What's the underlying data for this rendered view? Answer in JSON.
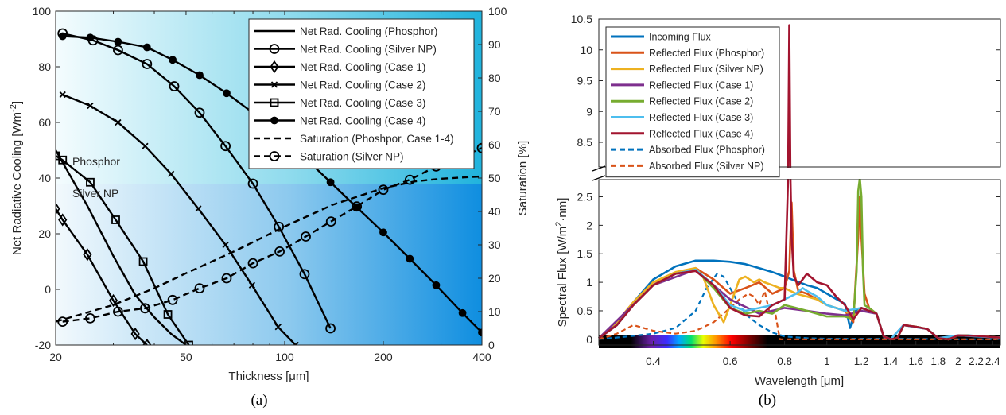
{
  "captions": {
    "a": "(a)",
    "b": "(b)"
  },
  "colors": {
    "incoming": "#0072BD",
    "phosphor": "#D95319",
    "silver": "#EDB120",
    "case1": "#7E2F8E",
    "case2": "#77AC30",
    "case3": "#4DBEEE",
    "case4": "#A2142F",
    "grad_light": "#f2fbfd",
    "grad_mid": "#79d2e8",
    "grad_dark": "#0a99d6"
  },
  "chart_data": [
    {
      "type": "line",
      "panel": "a",
      "xlabel": "Thickness [μm]",
      "xscale": "log",
      "xlim": [
        20,
        400
      ],
      "xticks": [
        20,
        50,
        100,
        200,
        400
      ],
      "ylabel_left_main": "Net Radiative Cooling [Wm",
      "ylabel_left_sup": "-2",
      "ylabel_left_end": "]",
      "ylim_left": [
        -20,
        100
      ],
      "yticks_left": [
        -20,
        0,
        20,
        40,
        60,
        80,
        100
      ],
      "ylabel_right": "Saturation [%]",
      "ylim_right": [
        0,
        100
      ],
      "yticks_right": [
        0,
        10,
        20,
        30,
        40,
        50,
        60,
        70,
        80,
        90,
        100
      ],
      "region_labels": [
        "Phosphor",
        "Silver NP"
      ],
      "legend_position": "top-right",
      "series": [
        {
          "name": "Net Rad. Cooling (Phosphor)",
          "axis": "left",
          "style": "solid",
          "marker": "none",
          "x": [
            20,
            25,
            30,
            35,
            40,
            45,
            50
          ],
          "y": [
            50,
            30,
            12,
            -2,
            -10,
            -16,
            -20
          ]
        },
        {
          "name": "Net Rad. Cooling (Silver NP)",
          "axis": "left",
          "style": "solid",
          "marker": "circle",
          "x": [
            21,
            26,
            31,
            38,
            46,
            55,
            66,
            80,
            96,
            115,
            138
          ],
          "y": [
            92,
            89.5,
            86,
            81,
            73,
            63.5,
            51.5,
            38,
            22.5,
            5.5,
            -14
          ]
        },
        {
          "name": "Net Rad. Cooling (Case 1)",
          "axis": "left",
          "style": "solid",
          "marker": "diamond",
          "x": [
            20,
            21,
            25,
            30,
            35,
            38
          ],
          "y": [
            29,
            25,
            12.5,
            -4,
            -16,
            -20
          ]
        },
        {
          "name": "Net Rad. Cooling (Case 2)",
          "axis": "left",
          "style": "solid",
          "marker": "x",
          "x": [
            21,
            25.5,
            31,
            37.5,
            45,
            54.5,
            66,
            79.5,
            95.5,
            108
          ],
          "y": [
            70,
            66,
            60,
            51.5,
            41.5,
            29,
            16,
            1.5,
            -13.5,
            -20
          ]
        },
        {
          "name": "Net Rad. Cooling (Case 3)",
          "axis": "left",
          "style": "solid",
          "marker": "square",
          "x": [
            20,
            21,
            25.5,
            30.5,
            37,
            44,
            51
          ],
          "y": [
            48,
            46.5,
            38.5,
            25,
            10,
            -9,
            -20
          ]
        },
        {
          "name": "Net Rad. Cooling (Case 4)",
          "axis": "left",
          "style": "solid",
          "marker": "filled-circle",
          "x": [
            21,
            25.5,
            31,
            38,
            45.5,
            55,
            66.5,
            80,
            96,
            116,
            138,
            166,
            200,
            241,
            290,
            349,
            400
          ],
          "y": [
            91,
            90.5,
            89,
            87,
            82.5,
            77,
            70.5,
            63.5,
            56,
            47,
            38.5,
            29.5,
            20.5,
            11,
            1.5,
            -8.5,
            -15.5
          ]
        },
        {
          "name": "Saturation (Phoshpor, Case 1-4)",
          "axis": "right",
          "style": "dashed",
          "marker": "none",
          "x": [
            20,
            30,
            40,
            50,
            70,
            100,
            140,
            200,
            250,
            300,
            400
          ],
          "y": [
            7,
            12,
            17,
            21.5,
            28,
            35.5,
            42,
            47,
            49,
            49.8,
            50.5
          ]
        },
        {
          "name": "Saturation (Silver NP)",
          "axis": "right",
          "style": "dashed",
          "marker": "circle",
          "x": [
            21,
            25.5,
            31,
            37.5,
            45.5,
            55,
            66.5,
            80,
            96.5,
            116,
            138.5,
            166,
            200,
            241,
            290,
            350,
            400
          ],
          "y": [
            7,
            8,
            10,
            11,
            13.5,
            17,
            20,
            24.5,
            28,
            32.5,
            37,
            41.5,
            46.5,
            49.5,
            53.5,
            56.5,
            59
          ]
        }
      ]
    },
    {
      "type": "line",
      "panel": "b",
      "xlabel": "Wavelength [μm]",
      "xscale": "log",
      "xlim": [
        0.3,
        2.5
      ],
      "xticks": [
        "0.4",
        "0.6",
        "0.8",
        "1",
        "1.2",
        "1.4",
        "1.6",
        "1.8",
        "2",
        "2.2",
        "2.4"
      ],
      "xtick_values": [
        0.4,
        0.6,
        0.8,
        1.0,
        1.2,
        1.4,
        1.6,
        1.8,
        2.0,
        2.2,
        2.4
      ],
      "ylabel_main": "Spectral Flux [W/m",
      "ylabel_sup": "2",
      "ylabel_end": "·nm]",
      "ylim_lower": [
        -0.1,
        2.8
      ],
      "yticks_lower": [
        "0",
        "0.5",
        "1",
        "1.5",
        "2",
        "2.5"
      ],
      "ytick_lower_values": [
        0,
        0.5,
        1,
        1.5,
        2,
        2.5
      ],
      "ylim_upper": [
        8.1,
        10.5
      ],
      "yticks_upper": [
        "8.5",
        "9",
        "9.5",
        "10",
        "10.5"
      ],
      "ytick_upper_values": [
        8.5,
        9,
        9.5,
        10,
        10.5
      ],
      "axis_break": true,
      "legend_position": "top-left",
      "series": [
        {
          "name": "Incoming Flux",
          "color_key": "incoming",
          "style": "solid",
          "x": [
            0.3,
            0.33,
            0.36,
            0.4,
            0.45,
            0.5,
            0.55,
            0.6,
            0.65,
            0.7,
            0.75,
            0.8,
            0.85,
            0.9,
            0.95,
            1.0,
            1.1,
            1.13,
            1.16,
            1.2,
            1.25,
            1.3,
            1.35,
            1.4,
            1.45,
            1.5,
            1.6,
            1.7,
            1.8,
            1.9,
            2.0,
            2.1,
            2.2,
            2.3,
            2.4,
            2.5
          ],
          "y": [
            0.02,
            0.25,
            0.65,
            1.05,
            1.28,
            1.38,
            1.38,
            1.36,
            1.32,
            1.25,
            1.18,
            1.1,
            1.02,
            0.95,
            0.9,
            0.8,
            0.62,
            0.2,
            0.5,
            0.55,
            0.5,
            0.45,
            0.05,
            0.0,
            0.02,
            0.25,
            0.22,
            0.18,
            0.02,
            0.0,
            0.07,
            0.07,
            0.06,
            0.05,
            0.04,
            0.03
          ]
        },
        {
          "name": "Reflected Flux (Phosphor)",
          "color_key": "phosphor",
          "style": "solid",
          "x": [
            0.3,
            0.33,
            0.36,
            0.4,
            0.45,
            0.5,
            0.55,
            0.6,
            0.65,
            0.7,
            0.75,
            0.8,
            0.82,
            0.83,
            0.84,
            0.86,
            0.9,
            0.95,
            1.0,
            1.1,
            1.15,
            1.18,
            1.19,
            1.2,
            1.22,
            1.25,
            1.3,
            1.35,
            1.4,
            1.45,
            1.5,
            1.6,
            1.7,
            1.8,
            1.9,
            2.0,
            2.2,
            2.4,
            2.5
          ],
          "y": [
            0.02,
            0.3,
            0.65,
            1.0,
            1.15,
            1.25,
            1.05,
            0.8,
            0.9,
            1.0,
            0.8,
            0.9,
            1.2,
            2.4,
            1.2,
            0.85,
            0.8,
            0.7,
            0.6,
            0.5,
            0.3,
            1.8,
            2.5,
            1.8,
            0.8,
            0.55,
            0.45,
            0.05,
            0.0,
            0.02,
            0.25,
            0.22,
            0.18,
            0.02,
            0.0,
            0.07,
            0.06,
            0.04,
            0.03
          ]
        },
        {
          "name": "Reflected Flux (Silver NP)",
          "color_key": "silver",
          "style": "solid",
          "x": [
            0.3,
            0.33,
            0.36,
            0.4,
            0.45,
            0.5,
            0.52,
            0.55,
            0.58,
            0.6,
            0.63,
            0.65,
            0.68,
            0.7,
            0.72,
            0.75,
            0.78,
            0.8,
            0.85,
            0.9,
            0.95,
            1.0,
            1.05,
            1.1,
            1.15,
            1.2,
            1.25,
            1.3,
            1.35,
            1.4,
            1.45,
            1.5,
            1.6,
            1.7,
            1.8,
            1.9,
            2.0,
            2.2,
            2.4,
            2.5
          ],
          "y": [
            0.02,
            0.3,
            0.65,
            1.0,
            1.18,
            1.25,
            1.1,
            0.6,
            0.3,
            0.6,
            1.05,
            1.1,
            1.0,
            1.05,
            1.0,
            0.95,
            0.9,
            0.9,
            0.8,
            0.75,
            0.7,
            0.6,
            0.55,
            0.5,
            0.4,
            0.55,
            0.5,
            0.45,
            0.05,
            0.0,
            0.02,
            0.25,
            0.22,
            0.18,
            0.02,
            0.0,
            0.07,
            0.06,
            0.04,
            0.03
          ]
        },
        {
          "name": "Reflected Flux (Case 1)",
          "color_key": "case1",
          "style": "solid",
          "x": [
            0.3,
            0.4,
            0.5,
            0.6,
            0.7,
            0.8,
            0.9,
            1.0,
            1.1,
            1.2,
            1.3,
            1.35,
            1.4,
            1.5,
            1.7,
            1.8,
            2.0,
            2.5
          ],
          "y": [
            0.02,
            0.95,
            1.22,
            0.7,
            0.45,
            0.55,
            0.5,
            0.45,
            0.42,
            0.5,
            0.45,
            0.05,
            0.0,
            0.25,
            0.18,
            0.02,
            0.07,
            0.03
          ]
        },
        {
          "name": "Reflected Flux (Case 2)",
          "color_key": "case2",
          "style": "solid",
          "x": [
            0.3,
            0.33,
            0.36,
            0.4,
            0.45,
            0.5,
            0.55,
            0.6,
            0.65,
            0.7,
            0.75,
            0.8,
            0.85,
            0.9,
            0.95,
            1.0,
            1.1,
            1.15,
            1.17,
            1.18,
            1.19,
            1.2,
            1.21,
            1.22,
            1.25,
            1.3,
            1.35,
            1.4,
            1.45,
            1.5,
            1.6,
            1.7,
            1.8,
            1.9,
            2.0,
            2.2,
            2.4,
            2.5
          ],
          "y": [
            0.02,
            0.25,
            0.6,
            0.95,
            1.15,
            1.22,
            0.9,
            0.55,
            0.45,
            0.5,
            0.45,
            0.6,
            0.55,
            0.5,
            0.45,
            0.4,
            0.4,
            0.35,
            1.2,
            2.6,
            3.35,
            2.5,
            1.2,
            0.6,
            0.55,
            0.45,
            0.05,
            0.0,
            0.02,
            0.25,
            0.22,
            0.18,
            0.02,
            0.0,
            0.07,
            0.06,
            0.04,
            0.03
          ]
        },
        {
          "name": "Reflected Flux (Case 3)",
          "color_key": "case3",
          "style": "solid",
          "x": [
            0.3,
            0.33,
            0.36,
            0.4,
            0.45,
            0.5,
            0.55,
            0.6,
            0.65,
            0.7,
            0.75,
            0.8,
            0.85,
            0.88,
            0.9,
            0.95,
            1.0,
            1.1,
            1.2,
            1.3,
            1.35,
            1.4,
            1.5,
            1.7,
            1.8,
            2.0,
            2.5
          ],
          "y": [
            0.02,
            0.25,
            0.6,
            0.95,
            1.15,
            1.22,
            0.95,
            0.6,
            0.5,
            0.55,
            0.6,
            0.7,
            0.8,
            0.9,
            0.85,
            0.75,
            0.6,
            0.5,
            0.55,
            0.45,
            0.05,
            0.0,
            0.25,
            0.18,
            0.02,
            0.07,
            0.03
          ]
        },
        {
          "name": "Reflected Flux (Case 4)",
          "color_key": "case4",
          "style": "solid",
          "x": [
            0.3,
            0.33,
            0.36,
            0.4,
            0.45,
            0.5,
            0.55,
            0.6,
            0.65,
            0.7,
            0.75,
            0.8,
            0.815,
            0.82,
            0.825,
            0.83,
            0.84,
            0.86,
            0.9,
            0.95,
            1.0,
            1.05,
            1.1,
            1.15,
            1.2,
            1.25,
            1.3,
            1.35,
            1.4,
            1.45,
            1.5,
            1.6,
            1.7,
            1.8,
            1.9,
            2.0,
            2.2,
            2.4,
            2.5
          ],
          "y": [
            0.02,
            0.25,
            0.6,
            0.95,
            1.15,
            1.2,
            0.95,
            0.55,
            0.42,
            0.4,
            0.6,
            0.7,
            3.5,
            10.4,
            5.0,
            1.8,
            1.1,
            0.95,
            1.15,
            1.0,
            0.95,
            0.75,
            0.6,
            0.35,
            0.55,
            0.5,
            0.45,
            0.05,
            0.0,
            0.02,
            0.25,
            0.22,
            0.18,
            0.02,
            0.0,
            0.07,
            0.06,
            0.04,
            0.03
          ]
        },
        {
          "name": "Absorbed Flux (Phosphor)",
          "color_key": "incoming",
          "style": "dashed",
          "x": [
            0.3,
            0.35,
            0.4,
            0.45,
            0.5,
            0.53,
            0.56,
            0.58,
            0.6,
            0.63,
            0.66,
            0.7,
            0.75,
            0.8,
            0.9,
            1.0,
            1.2,
            1.5,
            2.0,
            2.5
          ],
          "y": [
            0.0,
            0.05,
            0.1,
            0.2,
            0.5,
            0.9,
            1.15,
            1.1,
            0.9,
            0.6,
            0.4,
            0.25,
            0.12,
            0.05,
            0.02,
            0.01,
            0.01,
            0.01,
            0.0,
            0.0
          ]
        },
        {
          "name": "Absorbed Flux (Silver NP)",
          "color_key": "phosphor",
          "style": "dashed",
          "x": [
            0.3,
            0.33,
            0.36,
            0.4,
            0.45,
            0.5,
            0.55,
            0.6,
            0.63,
            0.66,
            0.68,
            0.7,
            0.72,
            0.74,
            0.76,
            0.78,
            0.8,
            0.85,
            0.9,
            1.0,
            1.5,
            2.5
          ],
          "y": [
            0.0,
            0.1,
            0.25,
            0.15,
            0.1,
            0.15,
            0.3,
            0.55,
            0.7,
            0.8,
            0.75,
            0.6,
            0.85,
            0.45,
            0.5,
            0.0,
            0.0,
            0.0,
            0.0,
            0.0,
            0.0,
            0.0
          ]
        }
      ]
    }
  ]
}
